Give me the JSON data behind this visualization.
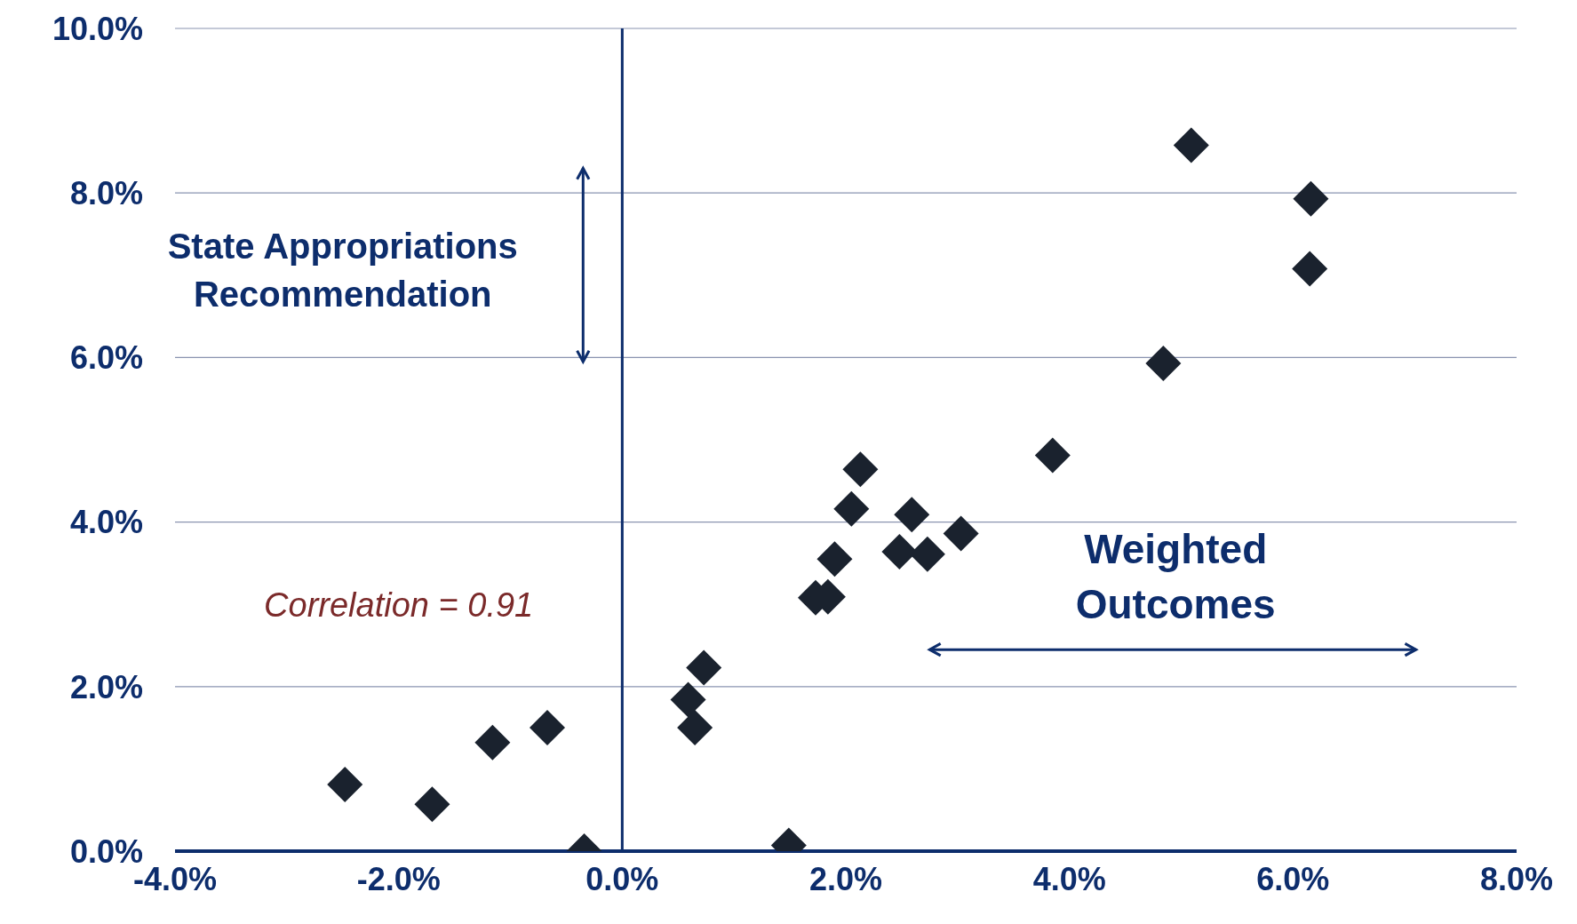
{
  "chart_data": {
    "type": "scatter",
    "annotations": [
      "State Appropriations Recommendation",
      "Weighted Outcomes",
      "Correlation = 0.91"
    ],
    "x": [
      -2.48,
      -1.7,
      -1.16,
      -0.67,
      -0.34,
      0.59,
      0.65,
      0.73,
      1.49,
      1.73,
      1.84,
      1.9,
      2.05,
      2.13,
      2.48,
      2.59,
      2.73,
      3.03,
      3.85,
      4.84,
      5.09,
      6.15,
      6.16
    ],
    "series": [
      {
        "color": "#1a222e",
        "values": [
          0.81,
          0.57,
          1.32,
          1.5,
          0.0,
          1.84,
          1.5,
          2.23,
          0.07,
          3.08,
          3.09,
          3.55,
          4.16,
          4.64,
          3.64,
          4.09,
          3.61,
          3.86,
          4.81,
          5.93,
          8.58,
          7.08,
          7.93
        ]
      }
    ],
    "xlim": [
      -4,
      8
    ],
    "xticks": [
      {
        "value": -4,
        "label": "-4.0%"
      },
      {
        "value": -2,
        "label": "-2.0%"
      },
      {
        "value": 0,
        "label": "0.0%"
      },
      {
        "value": 2,
        "label": "2.0%"
      },
      {
        "value": 4,
        "label": "4.0%"
      },
      {
        "value": 6,
        "label": "6.0%"
      },
      {
        "value": 8,
        "label": "8.0%"
      }
    ],
    "ylim": [
      0,
      10
    ],
    "yticks": [
      {
        "value": 0,
        "label": "0.0%"
      },
      {
        "value": 2,
        "label": "2.0%"
      },
      {
        "value": 4,
        "label": "4.0%"
      },
      {
        "value": 6,
        "label": "6.0%"
      },
      {
        "value": 8,
        "label": "8.0%"
      },
      {
        "value": 10,
        "label": "10.0%"
      }
    ],
    "ref_lines": [
      {
        "axis": "x",
        "value": 0,
        "color": "#0d2d6c"
      }
    ],
    "grid": "y",
    "marker": "diamond",
    "legend": false
  }
}
